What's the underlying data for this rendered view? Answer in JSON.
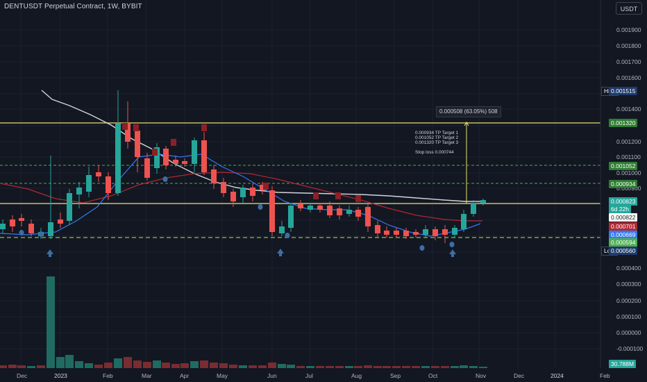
{
  "header": {
    "title": "DENTUSDT Perpetual Contract, 1W, BYBIT",
    "currency_button": "USDT"
  },
  "price_axis": {
    "labels": [
      "0.001900",
      "0.001800",
      "0.001700",
      "0.001600",
      "0.001400",
      "0.001200",
      "0.001100",
      "0.001000",
      "0.000900",
      "0.000400",
      "0.000300",
      "0.000200",
      "0.000100",
      "0.000000",
      "-0.000100"
    ],
    "high_label": "High",
    "high_value": "0.001515",
    "low_label": "Low",
    "low_value": "0.000560",
    "tags": {
      "tp3": "0.001320",
      "tp2": "0.001052",
      "tp1": "0.000934",
      "current": "0.000823",
      "countdown": "6d 22h",
      "ma_white": "0.000822",
      "ma_red": "0.000701",
      "ma_blue": "0.000669",
      "support": "0.000594",
      "volume": "30.788M"
    }
  },
  "time_axis": {
    "labels": [
      "Dec",
      "2023",
      "Feb",
      "Mar",
      "Apr",
      "May",
      "Jun",
      "Jul",
      "Aug",
      "Sep",
      "Oct",
      "Nov",
      "Dec",
      "2024",
      "Feb"
    ]
  },
  "annotations": {
    "measure": "0.000508 (63.05%) 508",
    "targets": [
      "0.000934 TP Target 1",
      "0.001052 TP Target 2",
      "0.001320 TP Target 3"
    ],
    "stop_loss": "Stop loss 0.000744"
  },
  "colors": {
    "background": "#131722",
    "up": "#26a69a",
    "down": "#ef5350",
    "tp3_line": "#e6e36a",
    "target_line": "#4caf50",
    "white_ma": "#d1d4dc",
    "red_ma": "#b22833",
    "blue_ma": "#3179f5"
  }
}
